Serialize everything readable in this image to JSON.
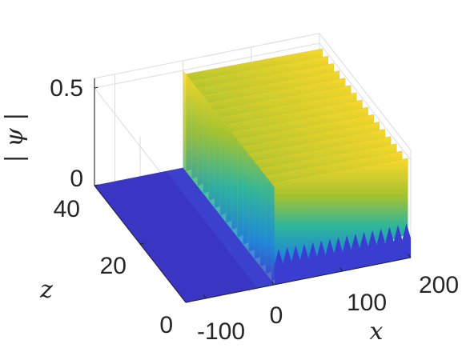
{
  "chart_data": {
    "type": "surface",
    "xlabel": "x",
    "ylabel": "z",
    "zlabel": "| ψ |",
    "x_ticks": [
      "-100",
      "0",
      "100",
      "200"
    ],
    "y_ticks": [
      "0",
      "20",
      "40"
    ],
    "z_ticks": [
      "0",
      "0.5"
    ],
    "xlim": [
      -130,
      200
    ],
    "ylim": [
      0,
      40
    ],
    "zlim": [
      0,
      0.55
    ],
    "colormap": "parula",
    "grid": true,
    "surface": {
      "description_values": {
        "front_x": 0,
        "background_value": 0,
        "plateau_amplitude": 0.5,
        "oscillation_count": 16,
        "oscillation_min": 0.1,
        "oscillation_max": 0.5
      }
    }
  }
}
